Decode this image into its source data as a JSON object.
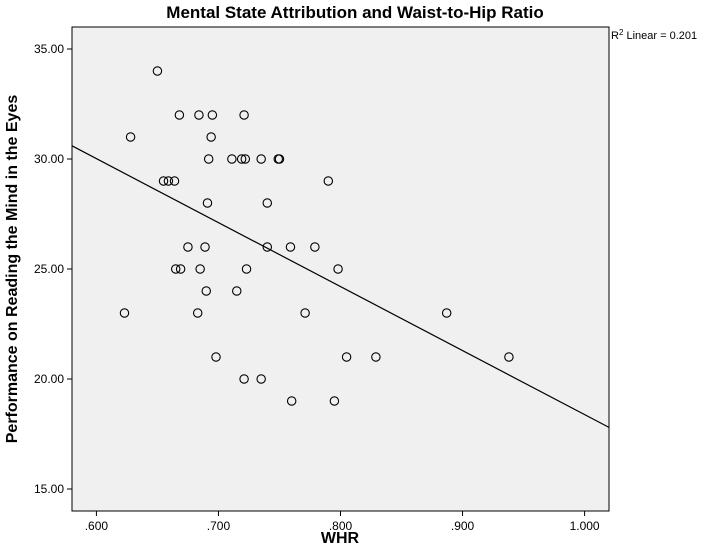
{
  "chart_data": {
    "type": "scatter",
    "title": "Mental State Attribution and Waist-to-Hip Ratio",
    "xlabel": "WHR",
    "ylabel": "Performance on Reading the Mind in the Eyes",
    "xlim": [
      0.58,
      1.02
    ],
    "ylim": [
      14.0,
      36.0
    ],
    "x_ticks": [
      0.6,
      0.7,
      0.8,
      0.9,
      1.0
    ],
    "x_tick_labels": [
      ".600",
      ".700",
      ".800",
      ".900",
      "1.000"
    ],
    "y_ticks": [
      15,
      20,
      25,
      30,
      35
    ],
    "y_tick_labels": [
      "15.00",
      "20.00",
      "25.00",
      "30.00",
      "35.00"
    ],
    "grid": false,
    "plot_background": "#f0f0f0",
    "marker_color": "#000000",
    "fit_line": {
      "type": "linear",
      "r2_prefix": "R",
      "r2_superscript": "2",
      "r2_text": " Linear = 0.201",
      "x": [
        0.58,
        1.02
      ],
      "y": [
        30.6,
        17.8
      ]
    },
    "points": [
      {
        "x": 0.623,
        "y": 23
      },
      {
        "x": 0.628,
        "y": 31
      },
      {
        "x": 0.65,
        "y": 34
      },
      {
        "x": 0.655,
        "y": 29
      },
      {
        "x": 0.659,
        "y": 29
      },
      {
        "x": 0.664,
        "y": 29
      },
      {
        "x": 0.665,
        "y": 25
      },
      {
        "x": 0.668,
        "y": 32
      },
      {
        "x": 0.669,
        "y": 25
      },
      {
        "x": 0.675,
        "y": 26
      },
      {
        "x": 0.683,
        "y": 23
      },
      {
        "x": 0.684,
        "y": 32
      },
      {
        "x": 0.685,
        "y": 25
      },
      {
        "x": 0.689,
        "y": 26
      },
      {
        "x": 0.69,
        "y": 24
      },
      {
        "x": 0.691,
        "y": 28
      },
      {
        "x": 0.692,
        "y": 30
      },
      {
        "x": 0.694,
        "y": 31
      },
      {
        "x": 0.695,
        "y": 32
      },
      {
        "x": 0.698,
        "y": 21
      },
      {
        "x": 0.711,
        "y": 30
      },
      {
        "x": 0.715,
        "y": 24
      },
      {
        "x": 0.719,
        "y": 30
      },
      {
        "x": 0.721,
        "y": 20
      },
      {
        "x": 0.721,
        "y": 32
      },
      {
        "x": 0.722,
        "y": 30
      },
      {
        "x": 0.723,
        "y": 25
      },
      {
        "x": 0.735,
        "y": 20
      },
      {
        "x": 0.735,
        "y": 30
      },
      {
        "x": 0.74,
        "y": 28
      },
      {
        "x": 0.74,
        "y": 26
      },
      {
        "x": 0.749,
        "y": 30
      },
      {
        "x": 0.75,
        "y": 30
      },
      {
        "x": 0.759,
        "y": 26
      },
      {
        "x": 0.76,
        "y": 19
      },
      {
        "x": 0.771,
        "y": 23
      },
      {
        "x": 0.779,
        "y": 26
      },
      {
        "x": 0.79,
        "y": 29
      },
      {
        "x": 0.795,
        "y": 19
      },
      {
        "x": 0.798,
        "y": 25
      },
      {
        "x": 0.805,
        "y": 21
      },
      {
        "x": 0.829,
        "y": 21
      },
      {
        "x": 0.887,
        "y": 23
      },
      {
        "x": 0.938,
        "y": 21
      }
    ]
  }
}
